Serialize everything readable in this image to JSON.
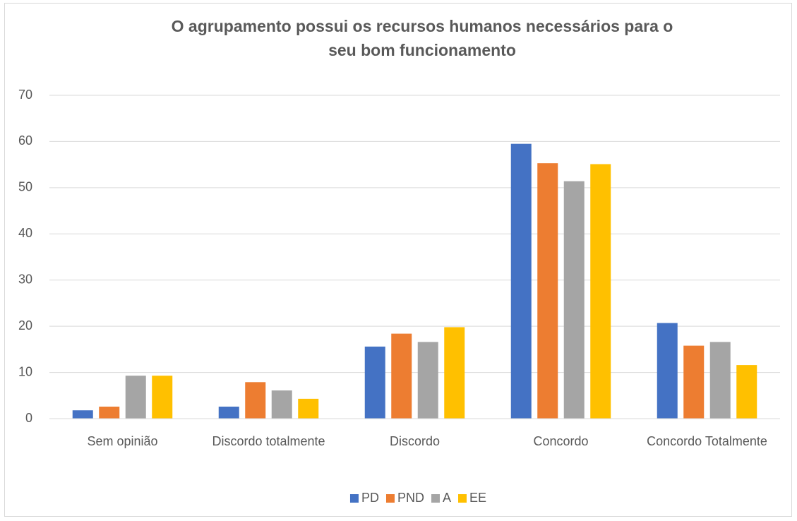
{
  "chart_data": {
    "type": "bar",
    "title": "O agrupamento possui os recursos humanos necessários para o seu bom funcionamento",
    "categories": [
      "Sem opinião",
      "Discordo totalmente",
      "Discordo",
      "Concordo",
      "Concordo Totalmente"
    ],
    "series": [
      {
        "name": "PD",
        "color": "#4472c4",
        "values": [
          1.8,
          2.6,
          15.6,
          59.5,
          20.7
        ]
      },
      {
        "name": "PND",
        "color": "#ed7d31",
        "values": [
          2.6,
          7.9,
          18.4,
          55.3,
          15.8
        ]
      },
      {
        "name": "A",
        "color": "#a5a5a5",
        "values": [
          9.3,
          6.1,
          16.6,
          51.4,
          16.6
        ]
      },
      {
        "name": "EE",
        "color": "#ffc000",
        "values": [
          9.3,
          4.3,
          19.8,
          55.1,
          11.6
        ]
      }
    ],
    "ylim": [
      0,
      70
    ],
    "yticks": [
      0,
      10,
      20,
      30,
      40,
      50,
      60,
      70
    ],
    "grid": true,
    "legend": "bottom"
  }
}
